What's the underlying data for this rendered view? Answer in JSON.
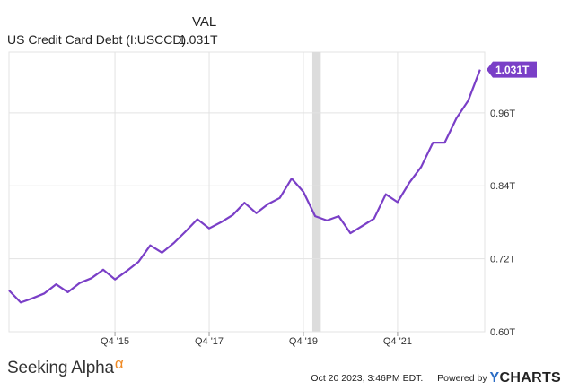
{
  "legend": {
    "header": "VAL",
    "series_name": "US Credit Card Debt (I:USCCD)",
    "series_value": "1.031T"
  },
  "branding": {
    "left_brand": "Seeking Alpha",
    "left_brand_symbol": "α",
    "timestamp": "Oct 20 2023, 3:46PM EDT.",
    "powered_by": "Powered by",
    "provider": "CHARTS",
    "provider_initial": "Y"
  },
  "colors": {
    "line": "#7a3fc7",
    "grid": "#e3e3e3",
    "recession": "#dcdcdc",
    "axis_text": "#333333"
  },
  "chart_data": {
    "type": "line",
    "title": "",
    "xlabel": "",
    "ylabel": "",
    "ylim": [
      0.6,
      1.06
    ],
    "yticks": [
      0.6,
      0.72,
      0.84,
      0.96
    ],
    "ytick_labels": [
      "0.60T",
      "0.72T",
      "0.84T",
      "0.96T"
    ],
    "xticks": [
      2015.75,
      2017.75,
      2019.75,
      2021.75
    ],
    "xtick_labels": [
      "Q4 '15",
      "Q4 '17",
      "Q4 '19",
      "Q4 '21"
    ],
    "xlim": [
      2013.5,
      2023.6
    ],
    "grid": true,
    "end_label": "1.031T",
    "recession_band": [
      2019.94,
      2020.12
    ],
    "series": [
      {
        "name": "US Credit Card Debt (I:USCCD)",
        "x": [
          2013.5,
          2013.75,
          2014.0,
          2014.25,
          2014.5,
          2014.75,
          2015.0,
          2015.25,
          2015.5,
          2015.75,
          2016.0,
          2016.25,
          2016.5,
          2016.75,
          2017.0,
          2017.25,
          2017.5,
          2017.75,
          2018.0,
          2018.25,
          2018.5,
          2018.75,
          2019.0,
          2019.25,
          2019.5,
          2019.75,
          2020.0,
          2020.25,
          2020.5,
          2020.75,
          2021.0,
          2021.25,
          2021.5,
          2021.75,
          2022.0,
          2022.25,
          2022.5,
          2022.75,
          2023.0,
          2023.25,
          2023.5
        ],
        "values": [
          0.668,
          0.648,
          0.655,
          0.663,
          0.678,
          0.665,
          0.68,
          0.688,
          0.702,
          0.686,
          0.7,
          0.715,
          0.742,
          0.73,
          0.746,
          0.765,
          0.785,
          0.77,
          0.78,
          0.792,
          0.812,
          0.795,
          0.81,
          0.82,
          0.852,
          0.83,
          0.79,
          0.783,
          0.79,
          0.762,
          0.774,
          0.786,
          0.826,
          0.813,
          0.845,
          0.871,
          0.911,
          0.911,
          0.951,
          0.98,
          1.031
        ]
      }
    ]
  }
}
